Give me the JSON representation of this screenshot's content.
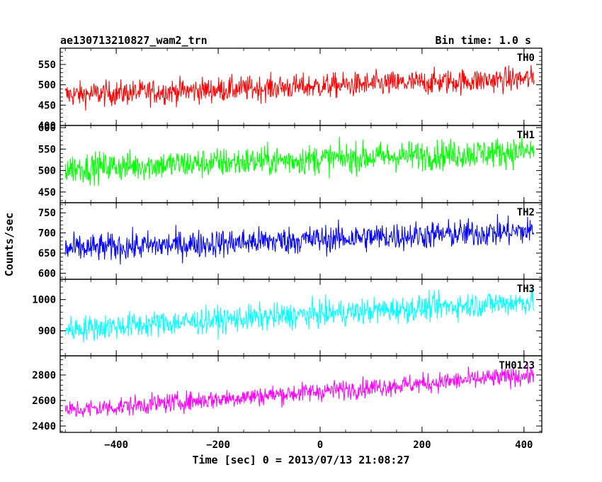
{
  "chart_data": {
    "type": "line",
    "title_left": "ae130713210827_wam2_trn",
    "title_right": "Bin time: 1.0 s",
    "xlabel": "Time [sec] 0 = 2013/07/13 21:08:27",
    "ylabel": "Counts/sec",
    "x_range": [
      -510,
      435
    ],
    "x_ticks": [
      -400,
      -200,
      0,
      200,
      400
    ],
    "x_tick_labels": [
      "−400",
      "−200",
      "0",
      "200",
      "400"
    ],
    "panels": [
      {
        "name": "TH0",
        "color": "#ff0000",
        "ylim": [
          400,
          590
        ],
        "y_ticks": [
          400,
          450,
          500,
          550
        ],
        "start_mean": 475,
        "end_mean": 515,
        "noise": 22,
        "t_start": -500,
        "t_end": 420
      },
      {
        "name": "TH1",
        "color": "#00ff00",
        "ylim": [
          425,
          605
        ],
        "y_ticks": [
          450,
          500,
          550,
          600
        ],
        "start_mean": 505,
        "end_mean": 545,
        "noise": 25,
        "t_start": -500,
        "t_end": 420
      },
      {
        "name": "TH2",
        "color": "#0000ff",
        "ylim": [
          585,
          775
        ],
        "y_ticks": [
          600,
          650,
          700,
          750
        ],
        "start_mean": 660,
        "end_mean": 705,
        "noise": 25,
        "t_start": -500,
        "t_end": 420
      },
      {
        "name": "TH3",
        "color": "#00ffff",
        "ylim": [
          820,
          1065
        ],
        "y_ticks": [
          900,
          1000
        ],
        "start_mean": 905,
        "end_mean": 995,
        "noise": 30,
        "t_start": -500,
        "t_end": 420
      },
      {
        "name": "TH0123",
        "color": "#ff00ff",
        "ylim": [
          2350,
          2950
        ],
        "y_ticks": [
          2400,
          2600,
          2800
        ],
        "start_mean": 2520,
        "end_mean": 2800,
        "noise": 55,
        "t_start": -500,
        "t_end": 420
      }
    ]
  }
}
